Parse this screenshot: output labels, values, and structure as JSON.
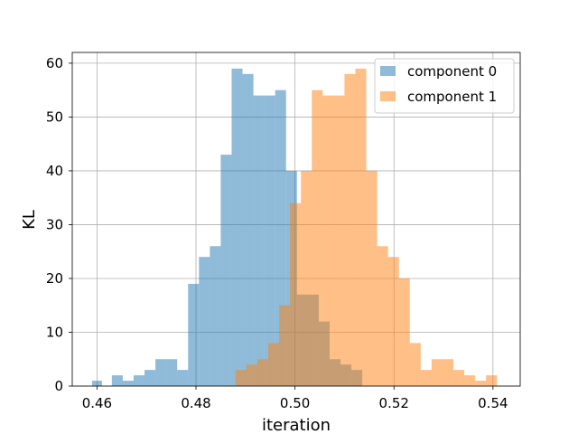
{
  "chart_data": {
    "type": "bar",
    "xlabel": "iteration",
    "ylabel": "KL",
    "xlim": [
      0.455,
      0.5455
    ],
    "ylim": [
      0,
      62
    ],
    "x_ticks": [
      "0.46",
      "0.48",
      "0.50",
      "0.52",
      "0.54"
    ],
    "x_tick_values": [
      0.46,
      0.48,
      0.5,
      0.52,
      0.54
    ],
    "y_ticks": [
      "0",
      "10",
      "20",
      "30",
      "40",
      "50",
      "60"
    ],
    "y_tick_values": [
      0,
      10,
      20,
      30,
      40,
      50,
      60
    ],
    "grid": true,
    "legend_position": "top-right",
    "series": [
      {
        "name": "component 0",
        "color": "#1f77b4",
        "alpha": 0.5,
        "bin_edges": [
          0.459,
          0.461,
          0.463,
          0.4652,
          0.4674,
          0.4696,
          0.4718,
          0.474,
          0.4762,
          0.4784,
          0.4806,
          0.4828,
          0.485,
          0.4872,
          0.4894,
          0.4916,
          0.4938,
          0.496,
          0.4982,
          0.5004,
          0.5026,
          0.5048,
          0.507,
          0.5092,
          0.5114,
          0.5136
        ],
        "values": [
          1,
          0,
          2,
          1,
          2,
          3,
          5,
          5,
          3,
          19,
          24,
          26,
          43,
          59,
          58,
          54,
          54,
          55,
          40,
          17,
          17,
          12,
          5,
          4,
          3
        ]
      },
      {
        "name": "component 1",
        "color": "#ff7f0e",
        "alpha": 0.5,
        "bin_edges": [
          0.488,
          0.4902,
          0.4924,
          0.4946,
          0.4968,
          0.499,
          0.5012,
          0.5034,
          0.5056,
          0.5078,
          0.51,
          0.5122,
          0.5144,
          0.5166,
          0.5188,
          0.521,
          0.5232,
          0.5254,
          0.5276,
          0.5298,
          0.532,
          0.5342,
          0.5364,
          0.5386,
          0.5408
        ],
        "values": [
          3,
          4,
          5,
          8,
          15,
          34,
          40,
          55,
          54,
          54,
          58,
          59,
          40,
          26,
          24,
          20,
          8,
          3,
          5,
          5,
          3,
          2,
          1,
          2
        ]
      }
    ]
  }
}
